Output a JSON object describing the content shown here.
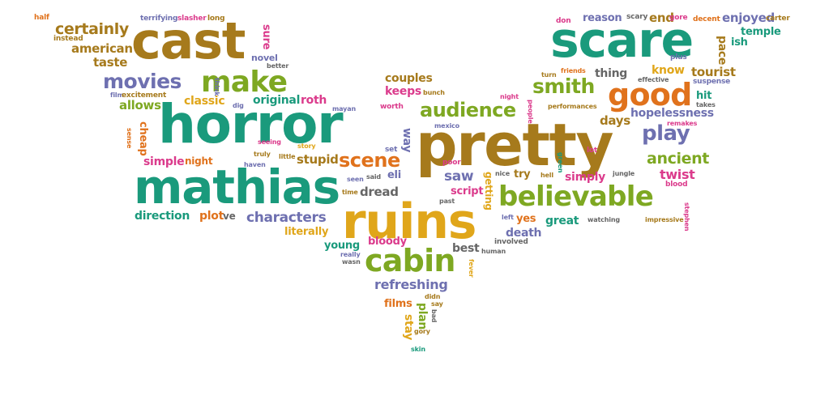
{
  "palette": {
    "teal": "#1a9a7c",
    "ochre": "#a67a1c",
    "purple": "#6e70b0",
    "green": "#7ea822",
    "yellow": "#e0a61a",
    "magenta": "#db3b8c",
    "orange": "#e0721c",
    "grey": "#666666"
  },
  "words": {
    "half": "half",
    "terrifying": "terrifying",
    "slasher": "slasher",
    "long": "long",
    "certainly": "certainly",
    "instead": "instead",
    "cast": "cast",
    "sure": "sure",
    "american": "american",
    "novel": "novel",
    "better": "better",
    "taste": "taste",
    "movies": "movies",
    "make": "make",
    "think": "think",
    "film": "film",
    "excitement": "excitement",
    "original": "original",
    "dig": "dig",
    "allows": "allows",
    "classic": "classic",
    "roth": "roth",
    "horror": "horror",
    "mayan": "mayan",
    "worth": "worth",
    "sense": "sense",
    "cheap": "cheap",
    "seeing": "seeing",
    "story": "story",
    "truly": "truly",
    "little": "little",
    "simple": "simple",
    "night_1": "night",
    "haven": "haven",
    "stupid": "stupid",
    "scene": "scene",
    "mathias": "mathias",
    "seen": "seen",
    "said": "said",
    "eli": "eli",
    "time": "time",
    "dread": "dread",
    "direction": "direction",
    "plot": "plot",
    "ve": "ve",
    "characters": "characters",
    "literally": "literally",
    "ruins": "ruins",
    "young": "young",
    "bloody": "bloody",
    "really": "really",
    "wasn": "wasn",
    "couples": "couples",
    "keeps": "keeps",
    "bunch": "bunch",
    "audience": "audience",
    "way": "way",
    "mexico": "mexico",
    "pretty": "pretty",
    "set": "set",
    "poor": "poor",
    "saw": "saw",
    "script": "script",
    "getting": "getting",
    "past": "past",
    "cabin": "cabin",
    "best": "best",
    "human": "human",
    "fever": "fever",
    "refreshing": "refreshing",
    "films": "films",
    "didn": "didn",
    "say": "say",
    "stay": "stay",
    "plan": "plan",
    "bad": "bad",
    "gory": "gory",
    "skin": "skin",
    "don": "don",
    "reason": "reason",
    "scary": "scary",
    "end": "end",
    "gore": "gore",
    "decent": "decent",
    "enjoyed": "enjoyed",
    "carter": "carter",
    "temple": "temple",
    "scare": "scare",
    "pace": "pace",
    "ish": "ish",
    "plus": "plus",
    "turn": "turn",
    "friends": "friends",
    "thing": "thing",
    "know": "know",
    "tourist": "tourist",
    "suspense": "suspense",
    "smith": "smith",
    "effective": "effective",
    "night_2": "night",
    "good": "good",
    "people": "people",
    "performances": "performances",
    "hit": "hit",
    "takes": "takes",
    "days": "days",
    "hopelessness": "hopelessness",
    "remakes": "remakes",
    "play": "play",
    "lot": "lot",
    "green": "green",
    "ancient": "ancient",
    "nice": "nice",
    "try": "try",
    "hell": "hell",
    "simply": "simply",
    "jungle": "jungle",
    "twist": "twist",
    "blood": "blood",
    "believable": "believable",
    "left": "left",
    "yes": "yes",
    "great": "great",
    "watching": "watching",
    "impressive": "impressive",
    "stephen": "stephen",
    "involved": "involved",
    "death": "death"
  }
}
